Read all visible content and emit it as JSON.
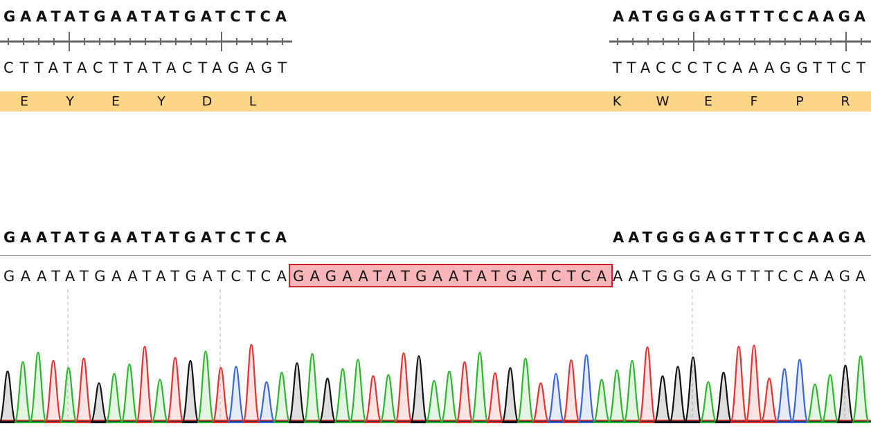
{
  "top": {
    "reference_left": "GAATATGAATATGATCTCA",
    "reference_right": "AATGGGAGTTTCCAAGA",
    "complement_left": "CTTATACTTATACTAGAGT",
    "complement_right": "TTACCCTCAAAGGTTCT",
    "translation_left": [
      "E",
      "Y",
      "E",
      "Y",
      "D",
      "L"
    ],
    "translation_right": [
      "K",
      "W",
      "E",
      "F",
      "P",
      "R"
    ]
  },
  "alignment": {
    "reference_left": "GAATATGAATATGATCTCA",
    "reference_right": "AATGGGAGTTTCCAAGA",
    "read_left": "GAATATGAATATGATCTCA",
    "read_insertion": "GAGAATATGAATATGATCTCA",
    "read_right": "AATGGGAGTTTCCAAGA"
  }
}
